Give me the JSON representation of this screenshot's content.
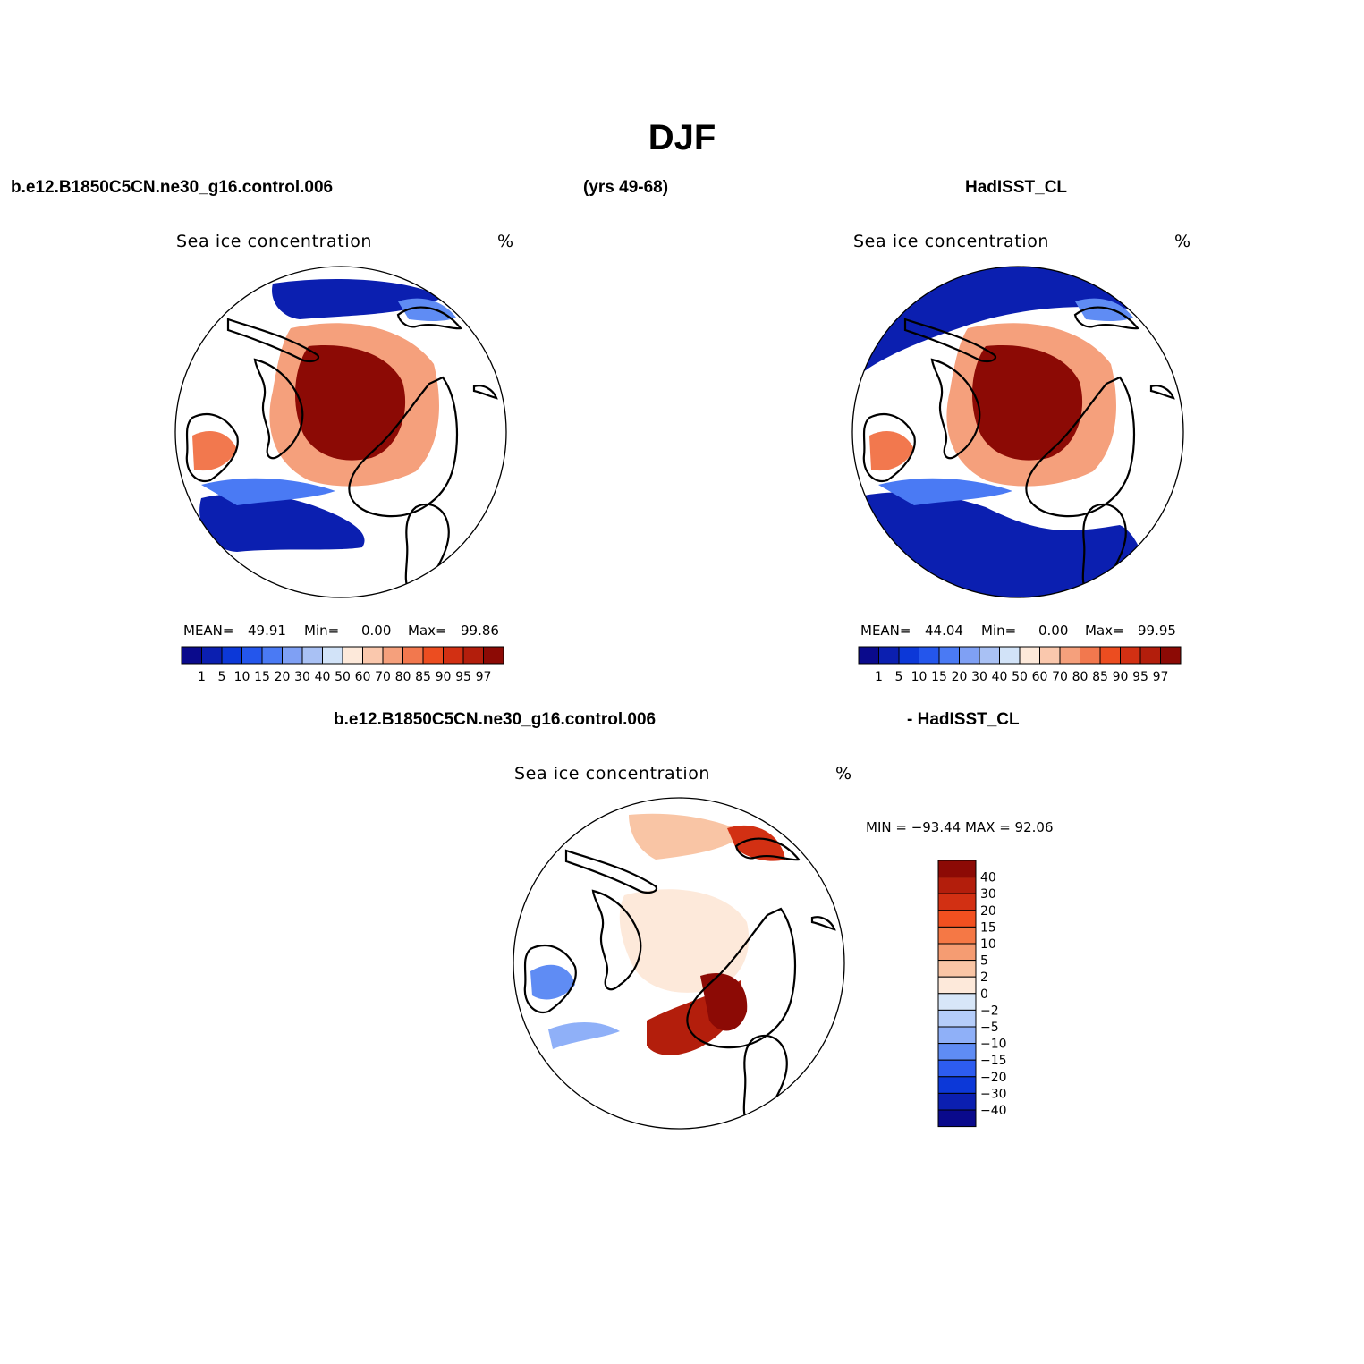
{
  "season_title": "DJF",
  "top_headers": {
    "left": "b.e12.B1850C5CN.ne30_g16.control.006",
    "middle": "(yrs 49-68)",
    "right": "HadISST_CL"
  },
  "bottom_headers": {
    "left": "b.e12.B1850C5CN.ne30_g16.control.006",
    "right": "- HadISST_CL"
  },
  "panels": [
    {
      "variable": "Sea ice concentration",
      "units": "%",
      "stats": {
        "mean_label": "MEAN=",
        "mean": "49.91",
        "min_label": "Min=",
        "min": "0.00",
        "max_label": "Max=",
        "max": "99.86"
      }
    },
    {
      "variable": "Sea ice concentration",
      "units": "%",
      "stats": {
        "mean_label": "MEAN=",
        "mean": "44.04",
        "min_label": "Min=",
        "min": "0.00",
        "max_label": "Max=",
        "max": "99.95"
      }
    },
    {
      "variable": "Sea ice concentration",
      "units": "%",
      "range_text": "MIN = −93.44 MAX =   92.06"
    }
  ],
  "colorbar_abs": {
    "labels": [
      "1",
      "5",
      "10",
      "15",
      "20",
      "30",
      "40",
      "50",
      "60",
      "70",
      "80",
      "85",
      "90",
      "95",
      "97"
    ],
    "colors": [
      "#0a0a8c",
      "#0b1fb0",
      "#0c38d8",
      "#2456ec",
      "#4a7af4",
      "#7fa0f4",
      "#a9c1f4",
      "#d2e3f8",
      "#fde9da",
      "#fac8ad",
      "#f5a07c",
      "#f2784e",
      "#ec4d20",
      "#d23013",
      "#b31e0c",
      "#8c0a05"
    ]
  },
  "colorbar_diff": {
    "labels": [
      "40",
      "30",
      "20",
      "15",
      "10",
      "5",
      "2",
      "0",
      "−2",
      "−5",
      "−10",
      "−15",
      "−20",
      "−30",
      "−40"
    ],
    "colors": [
      "#8c0a05",
      "#b31e0c",
      "#d23013",
      "#f25020",
      "#f57845",
      "#f59c72",
      "#f9c5a5",
      "#fde9da",
      "#d7e6f8",
      "#b5cdfa",
      "#8fb0f8",
      "#5f8cf4",
      "#2d5cf0",
      "#0c38d8",
      "#0b1fb0",
      "#0a0a8c"
    ]
  },
  "color_key": {
    "sea_ice_high": "#8c0a05",
    "open_water": "#0a0a8c",
    "coastline": "#000000",
    "background": "#ffffff"
  }
}
